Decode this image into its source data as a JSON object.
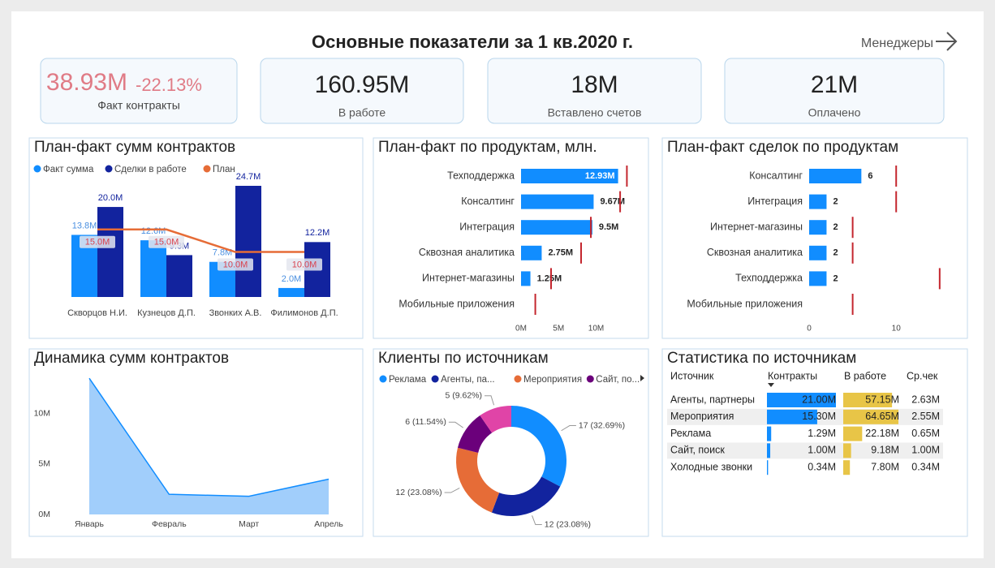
{
  "header": {
    "title": "Основные показатели за 1 кв.2020 г.",
    "link": "Менеджеры"
  },
  "kpis": [
    {
      "value": "38.93M",
      "change": "-22.13%",
      "label": "Факт контракты"
    },
    {
      "value": "160.95M",
      "label": "В работе"
    },
    {
      "value": "18M",
      "label": "Вставлено счетов"
    },
    {
      "value": "21M",
      "label": "Оплачено"
    }
  ],
  "chart_data": [
    {
      "type": "bar",
      "title": "План-факт сумм контрактов",
      "categories": [
        "Скворцов Н.И.",
        "Кузнецов Д.П.",
        "Звонких А.В.",
        "Филимонов Д.П."
      ],
      "series": [
        {
          "name": "Факт сумма",
          "color": "#118dff",
          "values": [
            13.8,
            12.6,
            7.8,
            2.0
          ],
          "value_labels": [
            "13.8M",
            "12.6M",
            "7.8M",
            "2.0M"
          ]
        },
        {
          "name": "Сделки в работе",
          "color": "#12239e",
          "values": [
            20.0,
            9.3,
            24.7,
            12.2
          ],
          "value_labels": [
            "20.0M",
            "9.3M",
            "24.7M",
            "12.2M"
          ]
        },
        {
          "name": "План",
          "type": "line",
          "color": "#e66c37",
          "values": [
            15,
            15,
            10,
            10
          ],
          "value_labels": [
            "15.0M",
            "15.0M",
            "10.0M",
            "10.0M"
          ]
        }
      ],
      "legend": "top-left"
    },
    {
      "type": "hbar",
      "title": "План-факт по продуктам, млн.",
      "categories": [
        "Техподдержка",
        "Консалтинг",
        "Интеграция",
        "Сквозная аналитика",
        "Интернет-магазины",
        "Мобильные приложения"
      ],
      "series": [
        {
          "color": "#118dff",
          "values": [
            12.93,
            9.67,
            9.5,
            2.75,
            1.25,
            null
          ],
          "value_labels": [
            "12.93M",
            "9.67M",
            "9.5M",
            "2.75M",
            "1.25M",
            null
          ]
        },
        {
          "color": "#c4262e",
          "marker": "tick",
          "values": [
            14.1,
            13.2,
            9.3,
            8.0,
            4.0,
            1.9
          ]
        }
      ],
      "xlim": [
        0,
        16
      ],
      "xticks": [
        {
          "value": 0,
          "label": "0M"
        },
        {
          "value": 5,
          "label": "5M"
        },
        {
          "value": 10,
          "label": "10M"
        }
      ]
    },
    {
      "type": "hbar",
      "title": "План-факт сделок по продуктам",
      "categories": [
        "Консалтинг",
        "Интеграция",
        "Интернет-магазины",
        "Сквозная аналитика",
        "Техподдержка",
        "Мобильные приложения"
      ],
      "series": [
        {
          "color": "#118dff",
          "values": [
            6,
            2,
            2,
            2,
            2,
            null
          ]
        },
        {
          "color": "#c4262e",
          "marker": "tick",
          "values": [
            10,
            10,
            5,
            5,
            15,
            5
          ]
        }
      ],
      "xlim": [
        0,
        18
      ],
      "xticks": [
        0,
        10
      ]
    },
    {
      "type": "area",
      "title": "Динамика сумм контрактов",
      "categories": [
        "Январь",
        "Февраль",
        "Март",
        "Апрель"
      ],
      "values": [
        13.5,
        2.0,
        1.8,
        3.5
      ],
      "color": "#118dff",
      "ylim": [
        0,
        14
      ],
      "yticks": [
        {
          "value": 0,
          "label": "0M"
        },
        {
          "value": 5,
          "label": "5M"
        },
        {
          "value": 10,
          "label": "10M"
        }
      ]
    },
    {
      "type": "pie",
      "donut": true,
      "title": "Клиенты по источникам",
      "categories": [
        "Реклама",
        "Агенты, па...",
        "Мероприятия",
        "Сайт, по...",
        null
      ],
      "values": [
        17,
        12,
        12,
        6,
        5
      ],
      "value_labels": [
        "17 (32.69%)",
        "12 (23.08%)",
        "12 (23.08%)",
        "6 (11.54%)",
        "5 (9.62%)"
      ],
      "colors": [
        "#118dff",
        "#12239e",
        "#e66c37",
        "#6b007b",
        "#e044a7"
      ]
    },
    {
      "type": "table",
      "title": "Статистика по источникам",
      "columns": [
        "Источник",
        "Контракты",
        "В работе",
        "Ср.чек"
      ],
      "categories": [
        "Агенты, партнеры",
        "Мероприятия",
        "Реклама",
        "Сайт, поиск",
        "Холодные звонки"
      ],
      "series": [
        {
          "color": "#118dff",
          "values": [
            21.0,
            15.3,
            1.29,
            1.0,
            0.34
          ],
          "value_labels": [
            "21.00M",
            "15.30M",
            "1.29M",
            "1.00M",
            "0.34M"
          ]
        },
        {
          "color": "#e8c547",
          "values": [
            57.15,
            64.65,
            22.18,
            9.18,
            7.8
          ],
          "value_labels": [
            "57.15M",
            "64.65M",
            "22.18M",
            "9.18M",
            "7.80M"
          ]
        },
        {
          "values": [
            2.63,
            2.55,
            0.65,
            1.0,
            0.34
          ],
          "value_labels": [
            "2.63M",
            "2.55M",
            "0.65M",
            "1.00M",
            "0.34M"
          ]
        }
      ]
    }
  ]
}
